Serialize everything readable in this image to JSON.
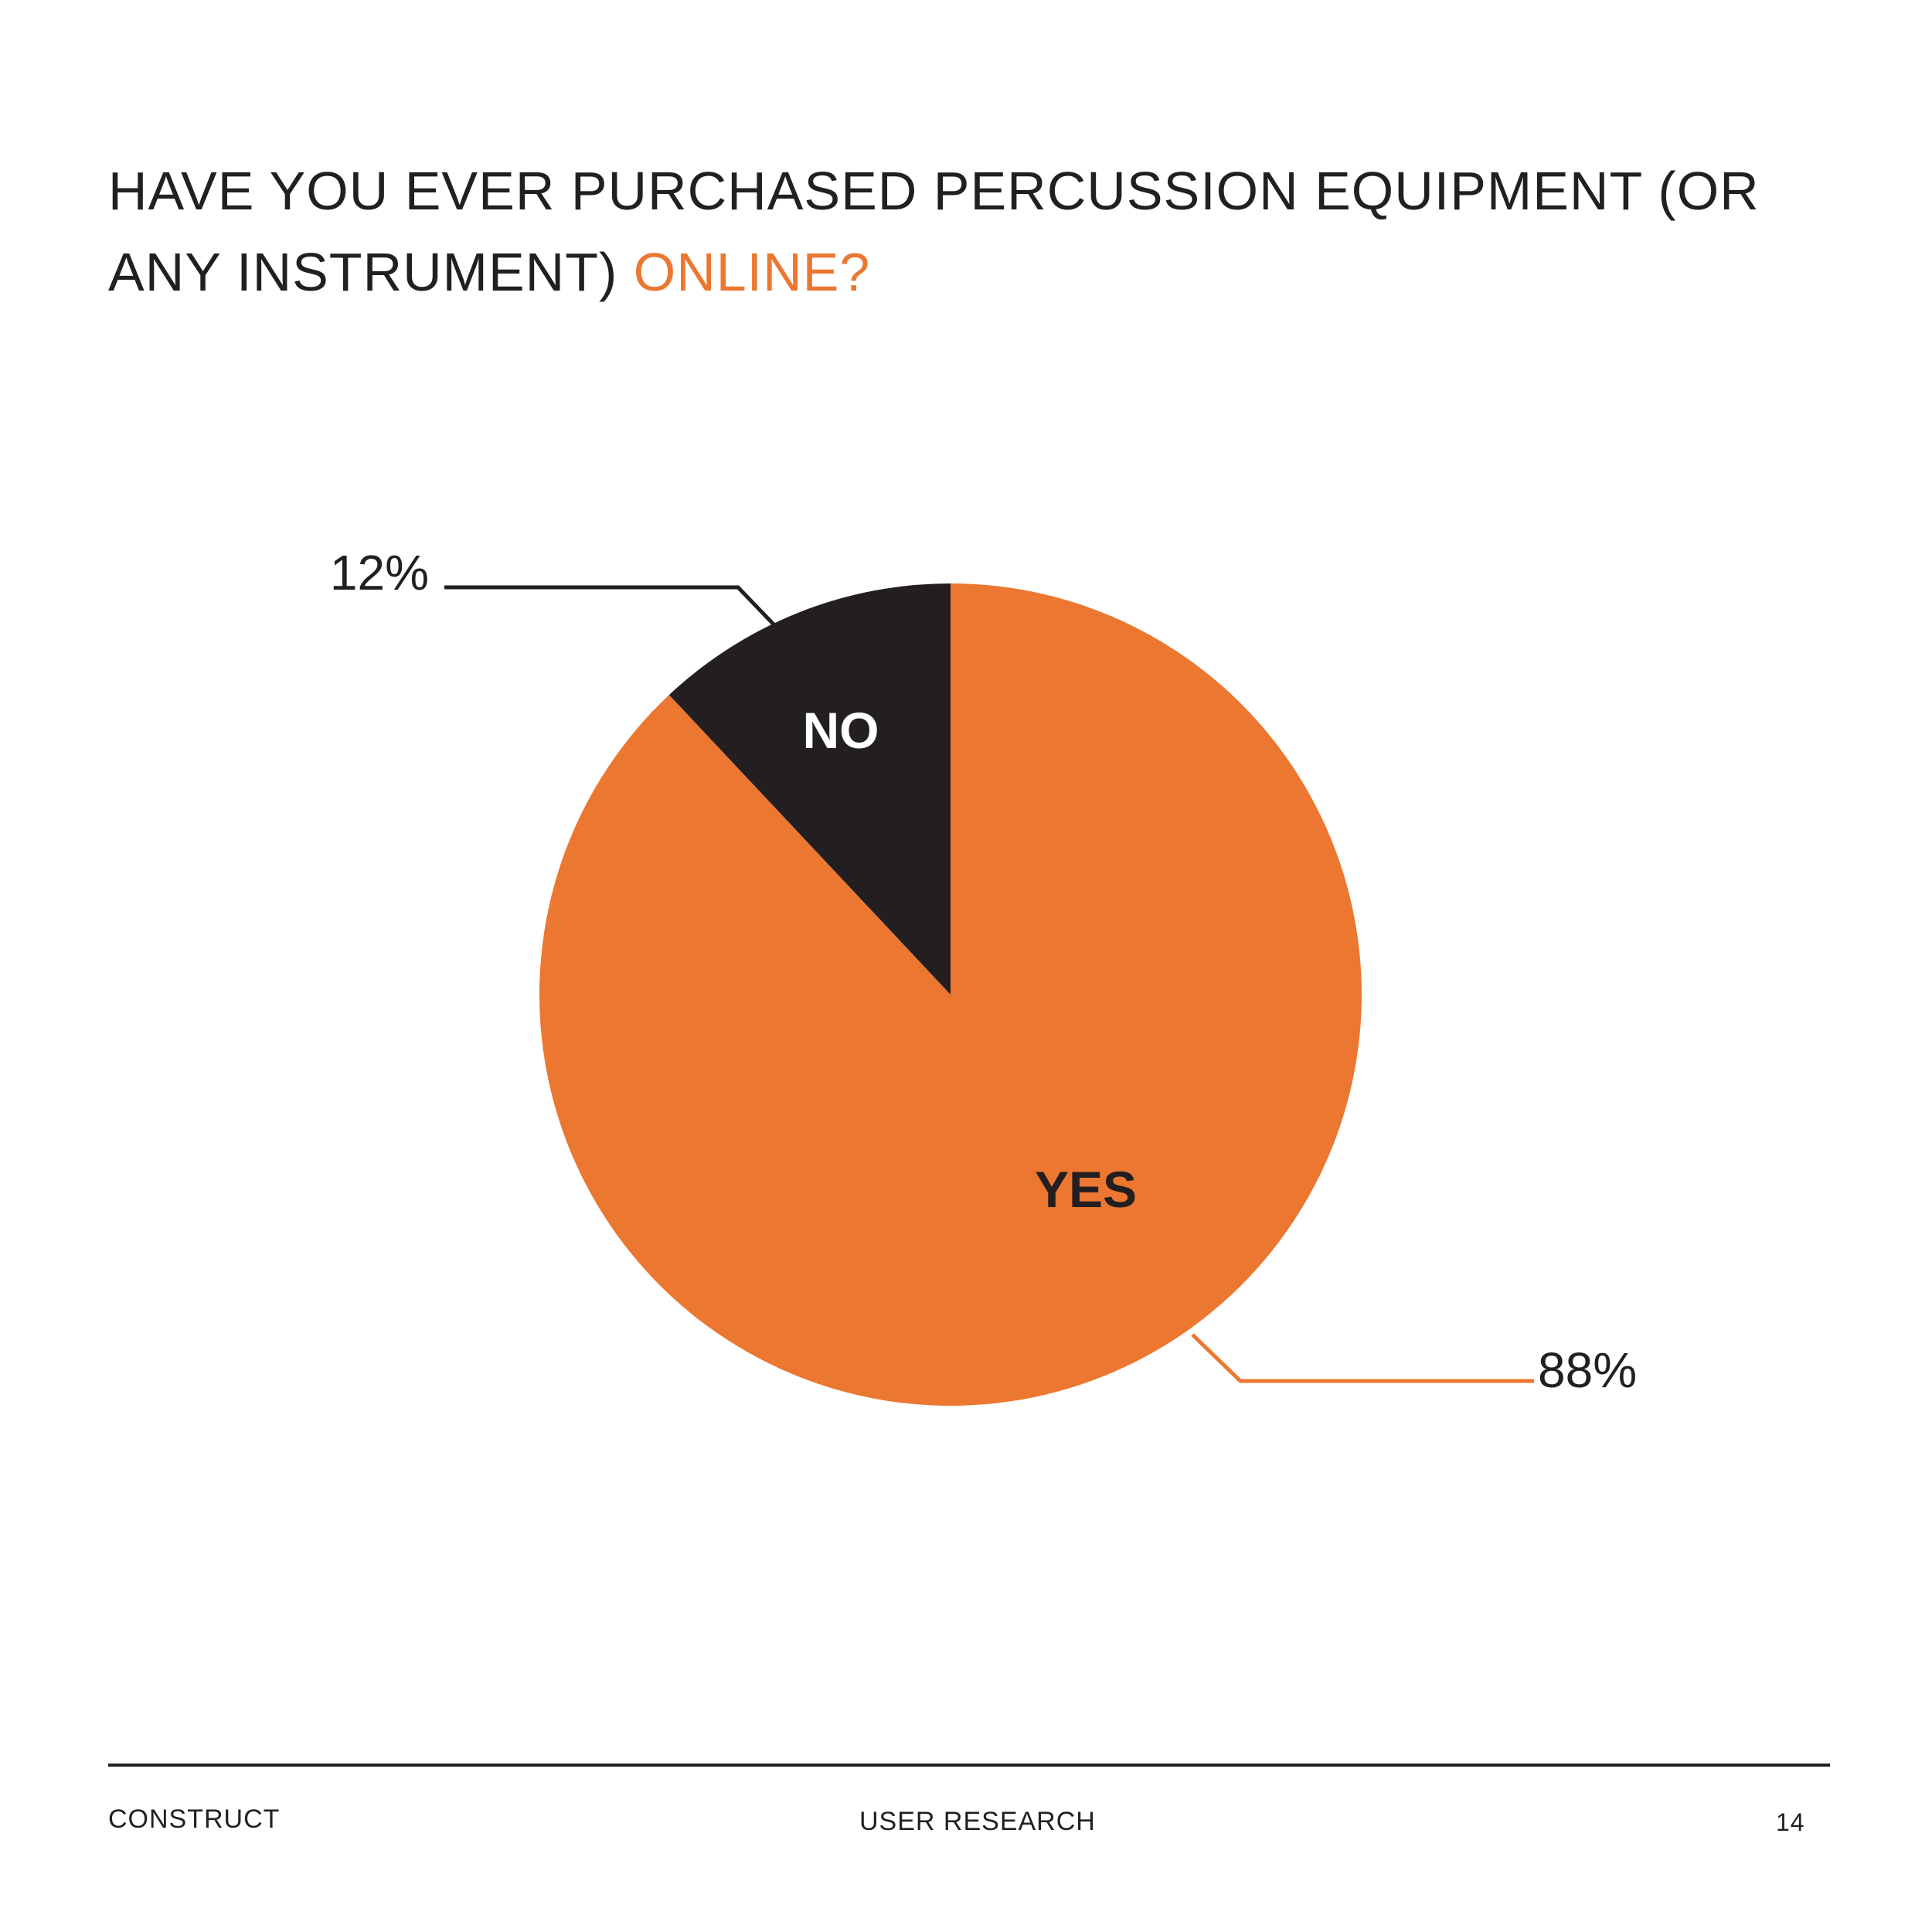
{
  "title": {
    "main": "HAVE YOU EVER PURCHASED PERCUSSION EQUIPMENT (OR ANY INSTRUMENT) ",
    "accent": "ONLINE?"
  },
  "colors": {
    "yes": "#ec7731",
    "no": "#231f20",
    "text": "#231f20",
    "slice_label_on_dark": "#ffffff"
  },
  "chart_data": {
    "type": "pie",
    "title": "HAVE YOU EVER PURCHASED PERCUSSION EQUIPMENT (OR ANY INSTRUMENT) ONLINE?",
    "slices": [
      {
        "label": "YES",
        "value": 88,
        "value_label": "88%"
      },
      {
        "label": "NO",
        "value": 12,
        "value_label": "12%"
      }
    ],
    "legend": "none"
  },
  "footer": {
    "left": "CONSTRUCT",
    "center": "USER RESEARCH",
    "page_number": "14"
  }
}
